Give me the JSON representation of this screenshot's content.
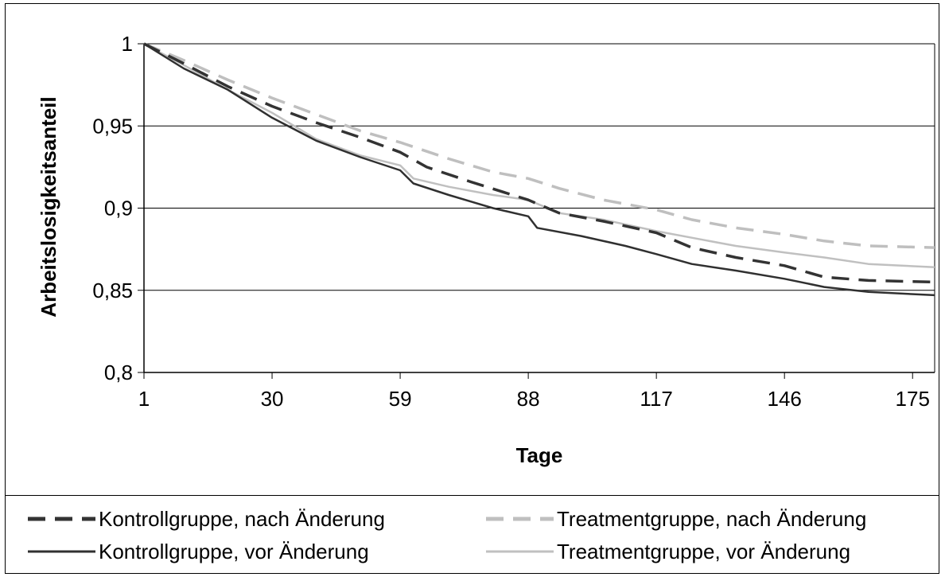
{
  "chart_data": {
    "type": "line",
    "xlabel": "Tage",
    "ylabel": "Arbeitslosigkeitsanteil",
    "xlim": [
      1,
      180
    ],
    "ylim": [
      0.8,
      1.0
    ],
    "x_ticks": [
      "1",
      "30",
      "59",
      "88",
      "117",
      "146",
      "175"
    ],
    "y_ticks": [
      "1",
      "0,95",
      "0,9",
      "0,85",
      "0,8"
    ],
    "grid": "horizontal",
    "legend_position": "bottom",
    "series": [
      {
        "name": "Kontrollgruppe, nach Änderung",
        "color": "#333333",
        "dash": "long-dash",
        "points": [
          [
            1,
            1.0
          ],
          [
            10,
            0.988
          ],
          [
            20,
            0.974
          ],
          [
            30,
            0.962
          ],
          [
            40,
            0.952
          ],
          [
            50,
            0.943
          ],
          [
            59,
            0.934
          ],
          [
            65,
            0.925
          ],
          [
            75,
            0.916
          ],
          [
            88,
            0.905
          ],
          [
            95,
            0.897
          ],
          [
            105,
            0.892
          ],
          [
            117,
            0.885
          ],
          [
            125,
            0.876
          ],
          [
            135,
            0.87
          ],
          [
            146,
            0.865
          ],
          [
            155,
            0.858
          ],
          [
            165,
            0.856
          ],
          [
            180,
            0.855
          ]
        ]
      },
      {
        "name": "Kontrollgruppe, vor Änderung",
        "color": "#303030",
        "dash": "solid",
        "points": [
          [
            1,
            1.0
          ],
          [
            10,
            0.985
          ],
          [
            20,
            0.972
          ],
          [
            30,
            0.955
          ],
          [
            40,
            0.941
          ],
          [
            50,
            0.931
          ],
          [
            59,
            0.923
          ],
          [
            62,
            0.915
          ],
          [
            70,
            0.908
          ],
          [
            80,
            0.9
          ],
          [
            88,
            0.895
          ],
          [
            90,
            0.888
          ],
          [
            100,
            0.883
          ],
          [
            110,
            0.877
          ],
          [
            117,
            0.872
          ],
          [
            125,
            0.866
          ],
          [
            135,
            0.862
          ],
          [
            146,
            0.857
          ],
          [
            155,
            0.852
          ],
          [
            165,
            0.849
          ],
          [
            180,
            0.847
          ]
        ]
      },
      {
        "name": "Treatmentgruppe, nach Änderung",
        "color": "#bfbfbf",
        "dash": "long-dash",
        "points": [
          [
            1,
            1.0
          ],
          [
            10,
            0.99
          ],
          [
            20,
            0.978
          ],
          [
            30,
            0.967
          ],
          [
            40,
            0.957
          ],
          [
            50,
            0.947
          ],
          [
            59,
            0.94
          ],
          [
            70,
            0.93
          ],
          [
            80,
            0.922
          ],
          [
            88,
            0.918
          ],
          [
            95,
            0.912
          ],
          [
            105,
            0.905
          ],
          [
            117,
            0.899
          ],
          [
            125,
            0.893
          ],
          [
            135,
            0.888
          ],
          [
            146,
            0.884
          ],
          [
            155,
            0.88
          ],
          [
            165,
            0.877
          ],
          [
            180,
            0.876
          ]
        ]
      },
      {
        "name": "Treatmentgruppe, vor Änderung",
        "color": "#c0c0c0",
        "dash": "solid",
        "points": [
          [
            1,
            1.0
          ],
          [
            10,
            0.987
          ],
          [
            20,
            0.972
          ],
          [
            30,
            0.958
          ],
          [
            40,
            0.942
          ],
          [
            50,
            0.932
          ],
          [
            59,
            0.926
          ],
          [
            62,
            0.918
          ],
          [
            70,
            0.913
          ],
          [
            80,
            0.908
          ],
          [
            88,
            0.905
          ],
          [
            95,
            0.897
          ],
          [
            105,
            0.893
          ],
          [
            117,
            0.886
          ],
          [
            125,
            0.882
          ],
          [
            135,
            0.877
          ],
          [
            146,
            0.873
          ],
          [
            155,
            0.87
          ],
          [
            165,
            0.866
          ],
          [
            180,
            0.864
          ]
        ]
      }
    ]
  }
}
